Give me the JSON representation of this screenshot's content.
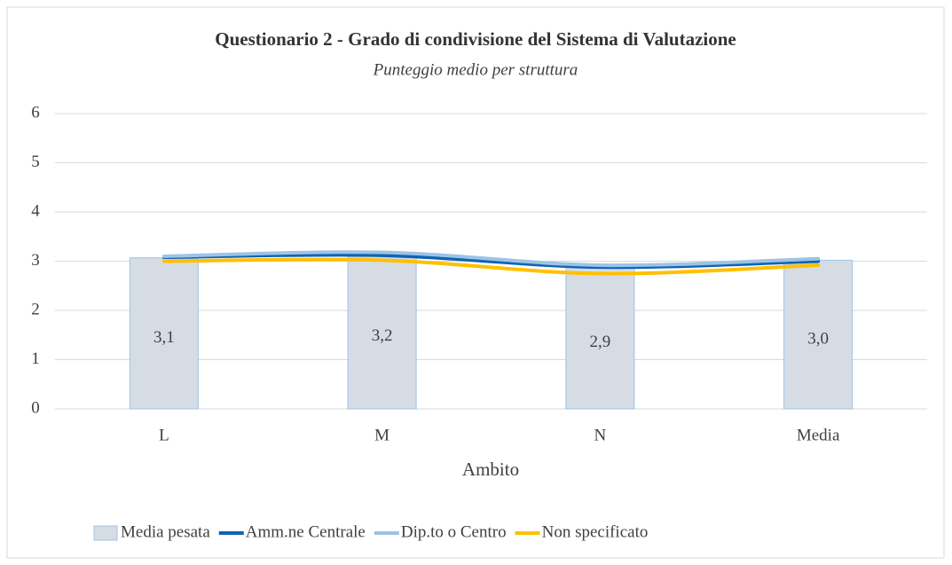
{
  "chart_data": {
    "type": "combo",
    "title": "Questionario 2  - Grado di condivisione del Sistema di Valutazione",
    "subtitle": "Punteggio medio per struttura",
    "x_label": "Ambito",
    "categories": [
      "L",
      "M",
      "N",
      "Media"
    ],
    "series": [
      {
        "name": "Media pesata",
        "type": "bar",
        "color": "#d6dce4",
        "values": [
          3.07,
          3.15,
          2.9,
          3.02
        ],
        "value_labels": [
          "3,1",
          "3,2",
          "2,9",
          "3,0"
        ]
      },
      {
        "name": "Amm.ne Centrale",
        "type": "line",
        "color": "#0f64b4",
        "values": [
          3.08,
          3.12,
          2.88,
          3.0
        ]
      },
      {
        "name": "Dip.to o Centro",
        "type": "line",
        "color": "#9dc3e6",
        "values": [
          3.1,
          3.18,
          2.92,
          3.05
        ]
      },
      {
        "name": "Non specificato",
        "type": "line",
        "color": "#ffc000",
        "values": [
          3.0,
          3.02,
          2.75,
          2.92
        ]
      }
    ],
    "ylim": [
      0,
      6
    ],
    "yticks": [
      0,
      1,
      2,
      3,
      4,
      5,
      6
    ],
    "grid": true,
    "legend": "bottom"
  }
}
